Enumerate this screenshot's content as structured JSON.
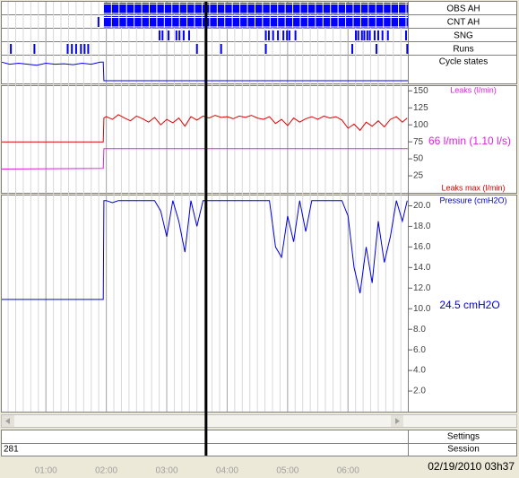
{
  "time_axis": {
    "xlim": [
      0.27,
      6.99
    ],
    "xticks": [
      {
        "value": 1,
        "label": "01:00"
      },
      {
        "value": 2,
        "label": "02:00"
      },
      {
        "value": 3,
        "label": "03:00"
      },
      {
        "value": 4,
        "label": "04:00"
      },
      {
        "value": 5,
        "label": "05:00"
      },
      {
        "value": 6,
        "label": "06:00"
      }
    ],
    "cursor": 3.65
  },
  "chart_data": [
    {
      "type": "events",
      "tracks": [
        {
          "name": "OBS AH",
          "color": "#0000ff",
          "spans": [
            [
              1.96,
              6.99
            ]
          ]
        },
        {
          "name": "CNT AH",
          "color": "#0000ff",
          "events": [
            1.87
          ],
          "spans": [
            [
              1.96,
              6.99
            ]
          ]
        },
        {
          "name": "SNG",
          "color": "#0000ff",
          "events": [
            2.88,
            2.93,
            3.03,
            3.16,
            3.21,
            3.28,
            3.37,
            4.64,
            4.69,
            4.76,
            4.84,
            4.93,
            4.99,
            5.03,
            5.13,
            6.13,
            6.17,
            6.23,
            6.27,
            6.32,
            6.36,
            6.44,
            6.5,
            6.57,
            6.66,
            6.96
          ]
        },
        {
          "name": "Runs",
          "color": "#0000ff",
          "events": [
            0.42,
            0.81,
            1.36,
            1.43,
            1.5,
            1.58,
            1.64,
            1.7,
            3.5,
            3.9,
            4.64,
            6.07,
            6.47,
            6.98
          ]
        },
        {
          "name": "Cycle states",
          "color": "#0000ff",
          "ylim": [
            0,
            1
          ],
          "x": [
            0.27,
            0.4,
            0.55,
            0.7,
            0.85,
            1.0,
            1.15,
            1.3,
            1.45,
            1.6,
            1.75,
            1.9,
            1.95,
            1.96,
            6.99
          ],
          "values": [
            0.9,
            0.8,
            0.85,
            0.8,
            0.75,
            0.85,
            0.8,
            0.82,
            0.78,
            0.85,
            0.8,
            0.9,
            0.9,
            0,
            0
          ]
        }
      ]
    },
    {
      "type": "line",
      "ylim": [
        0,
        157
      ],
      "yticks": [
        25,
        50,
        75,
        100,
        125,
        150
      ],
      "annotation": "66 l/min (1.10 l/s)",
      "annotation_color": "#e020e0",
      "series": [
        {
          "name": "Leaks (l/min)",
          "color": "#e020e0",
          "x": [
            0.27,
            1.95,
            1.96,
            6.99
          ],
          "values": [
            35,
            36,
            65,
            65
          ]
        },
        {
          "name": "Leaks max (l/min)",
          "color": "#e00000",
          "x": [
            0.27,
            1.95,
            1.96,
            2.0,
            2.1,
            2.2,
            2.3,
            2.4,
            2.5,
            2.6,
            2.7,
            2.8,
            2.9,
            3.0,
            3.1,
            3.2,
            3.3,
            3.4,
            3.5,
            3.6,
            3.7,
            3.8,
            3.9,
            4.0,
            4.1,
            4.2,
            4.3,
            4.4,
            4.5,
            4.6,
            4.7,
            4.8,
            4.9,
            5.0,
            5.1,
            5.2,
            5.3,
            5.4,
            5.5,
            5.6,
            5.7,
            5.8,
            5.9,
            6.0,
            6.1,
            6.2,
            6.3,
            6.4,
            6.5,
            6.6,
            6.7,
            6.8,
            6.9,
            6.98
          ],
          "values": [
            75,
            75,
            110,
            112,
            108,
            115,
            110,
            106,
            113,
            109,
            104,
            111,
            100,
            108,
            103,
            110,
            98,
            112,
            107,
            113,
            110,
            114,
            111,
            112,
            109,
            113,
            111,
            114,
            110,
            108,
            112,
            102,
            108,
            99,
            110,
            104,
            109,
            112,
            108,
            113,
            110,
            112,
            107,
            95,
            101,
            92,
            104,
            98,
            106,
            97,
            108,
            112,
            104,
            110
          ]
        }
      ]
    },
    {
      "type": "line",
      "ylim": [
        0,
        21
      ],
      "yticks": [
        {
          "value": 2,
          "label": "2.0"
        },
        {
          "value": 4,
          "label": "4.0"
        },
        {
          "value": 6,
          "label": "6.0"
        },
        {
          "value": 8,
          "label": "8.0"
        },
        {
          "value": 10,
          "label": "10.0"
        },
        {
          "value": 12,
          "label": "12.0"
        },
        {
          "value": 14,
          "label": "14.0"
        },
        {
          "value": 16,
          "label": "16.0"
        },
        {
          "value": 18,
          "label": "18.0"
        },
        {
          "value": 20,
          "label": "20.0"
        }
      ],
      "annotation": "24.5 cmH2O",
      "annotation_color": "#0000e0",
      "series": [
        {
          "name": "Pressure (cmH2O)",
          "color": "#0000e0",
          "x": [
            0.27,
            1.95,
            1.96,
            2.0,
            2.1,
            2.2,
            2.3,
            2.4,
            2.5,
            2.6,
            2.7,
            2.8,
            2.9,
            3.0,
            3.1,
            3.2,
            3.3,
            3.4,
            3.5,
            3.6,
            3.7,
            3.8,
            3.9,
            4.0,
            4.1,
            4.2,
            4.3,
            4.4,
            4.5,
            4.6,
            4.7,
            4.8,
            4.9,
            5.0,
            5.1,
            5.2,
            5.3,
            5.4,
            5.5,
            5.6,
            5.7,
            5.8,
            5.9,
            6.0,
            6.1,
            6.2,
            6.3,
            6.4,
            6.5,
            6.6,
            6.7,
            6.8,
            6.9,
            6.98
          ],
          "values": [
            10.9,
            10.9,
            20.5,
            20.5,
            20.3,
            20.5,
            20.5,
            20.5,
            20.5,
            20.5,
            20.5,
            20.5,
            19.5,
            17.0,
            20.5,
            18.5,
            15.5,
            20.5,
            18.0,
            20.5,
            20.5,
            20.5,
            20.5,
            20.5,
            20.5,
            20.5,
            20.5,
            20.5,
            20.5,
            20.5,
            20.5,
            16.0,
            15.0,
            19.0,
            16.5,
            20.5,
            17.5,
            20.5,
            20.5,
            20.5,
            20.5,
            20.5,
            20.5,
            19.0,
            14.0,
            11.5,
            16.0,
            12.5,
            18.5,
            14.5,
            17.0,
            20.5,
            18.5,
            20.5
          ]
        }
      ]
    }
  ],
  "rows": {
    "settings": "Settings",
    "session": "Session",
    "session_value": "281"
  },
  "timestamp": "02/19/2010 03h37"
}
